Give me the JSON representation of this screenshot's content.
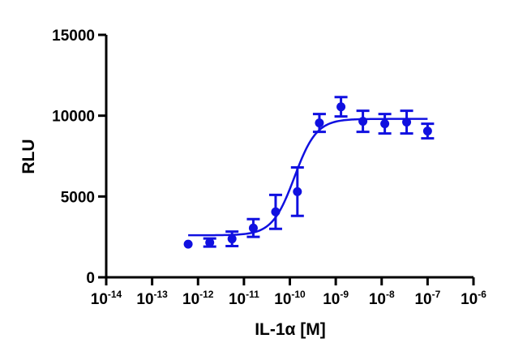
{
  "chart_data": {
    "type": "scatter",
    "title": "",
    "xlabel": "IL-1α [M]",
    "ylabel": "RLU",
    "x_scale": "log",
    "xlim": [
      1e-14,
      1e-06
    ],
    "ylim": [
      0,
      15000
    ],
    "x_ticks": [
      {
        "value": 1e-14,
        "base": "10",
        "exp": "-14"
      },
      {
        "value": 1e-13,
        "base": "10",
        "exp": "-13"
      },
      {
        "value": 1e-12,
        "base": "10",
        "exp": "-12"
      },
      {
        "value": 1e-11,
        "base": "10",
        "exp": "-11"
      },
      {
        "value": 1e-10,
        "base": "10",
        "exp": "-10"
      },
      {
        "value": 1e-09,
        "base": "10",
        "exp": "-9"
      },
      {
        "value": 1e-08,
        "base": "10",
        "exp": "-8"
      },
      {
        "value": 1e-07,
        "base": "10",
        "exp": "-7"
      },
      {
        "value": 1e-06,
        "base": "10",
        "exp": "-6"
      }
    ],
    "y_ticks": [
      {
        "value": 0,
        "label": "0"
      },
      {
        "value": 5000,
        "label": "5000"
      },
      {
        "value": 10000,
        "label": "10000"
      },
      {
        "value": 15000,
        "label": "15000"
      }
    ],
    "series": [
      {
        "color": "#1010e0",
        "points": [
          {
            "x": 6.1e-13,
            "y": 2050,
            "err": 0
          },
          {
            "x": 1.8e-12,
            "y": 2150,
            "err": 250
          },
          {
            "x": 5.5e-12,
            "y": 2380,
            "err": 450
          },
          {
            "x": 1.6e-11,
            "y": 3050,
            "err": 550
          },
          {
            "x": 4.9e-11,
            "y": 4050,
            "err": 1050
          },
          {
            "x": 1.46e-10,
            "y": 5300,
            "err": 1500
          },
          {
            "x": 4.4e-10,
            "y": 9550,
            "err": 550
          },
          {
            "x": 1.3e-09,
            "y": 10550,
            "err": 600
          },
          {
            "x": 3.9e-09,
            "y": 9650,
            "err": 650
          },
          {
            "x": 1.17e-08,
            "y": 9500,
            "err": 600
          },
          {
            "x": 3.5e-08,
            "y": 9600,
            "err": 700
          },
          {
            "x": 1e-07,
            "y": 9050,
            "err": 450
          }
        ],
        "fit": {
          "model": "sigmoidal",
          "bottom": 2600,
          "top": 9800,
          "logEC50": -9.9,
          "hill": 1.8,
          "x_range": [
            6.1e-13,
            1e-07
          ]
        }
      }
    ],
    "grid": false,
    "legend": "none"
  }
}
